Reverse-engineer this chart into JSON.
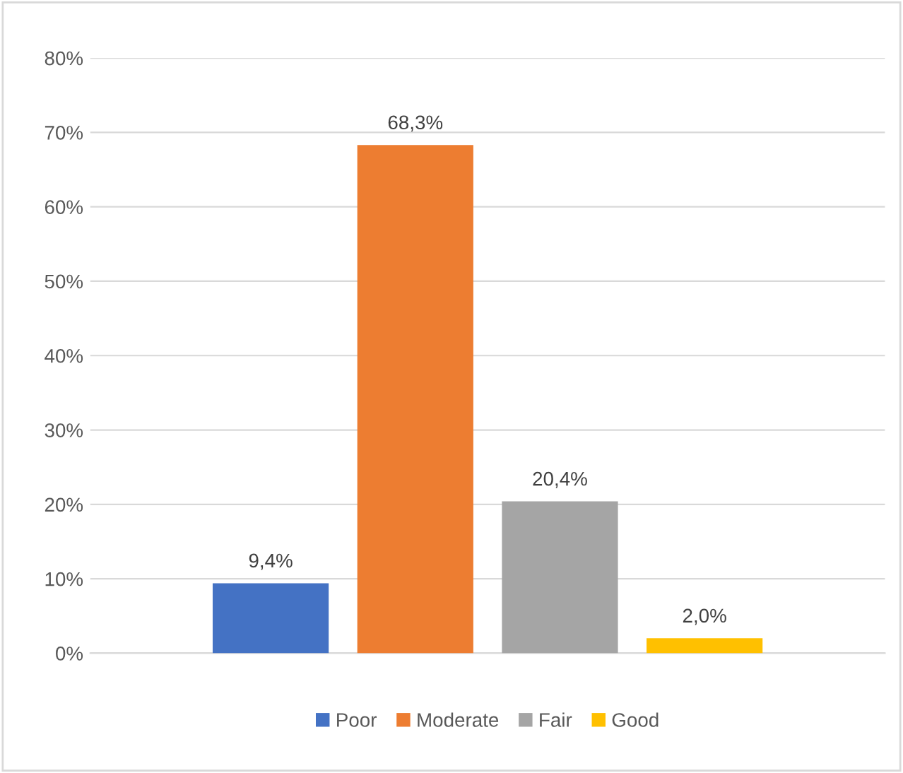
{
  "chart_data": {
    "type": "bar",
    "categories": [
      null
    ],
    "series": [
      {
        "name": "Poor",
        "color": "#4472c4",
        "values": [
          9.4
        ],
        "value_labels": [
          "9,4%"
        ]
      },
      {
        "name": "Moderate",
        "color": "#ed7d31",
        "values": [
          68.3
        ],
        "value_labels": [
          "68,3%"
        ]
      },
      {
        "name": "Fair",
        "color": "#a5a5a5",
        "values": [
          20.4
        ],
        "value_labels": [
          "20,4%"
        ]
      },
      {
        "name": "Good",
        "color": "#ffc000",
        "values": [
          2.0
        ],
        "value_labels": [
          "2,0%"
        ]
      }
    ],
    "ylim": [
      0,
      80
    ],
    "yticks": [
      {
        "value": 0,
        "label": "0%"
      },
      {
        "value": 10,
        "label": "10%"
      },
      {
        "value": 20,
        "label": "20%"
      },
      {
        "value": 30,
        "label": "30%"
      },
      {
        "value": 40,
        "label": "40%"
      },
      {
        "value": 50,
        "label": "50%"
      },
      {
        "value": 60,
        "label": "60%"
      },
      {
        "value": 70,
        "label": "70%"
      },
      {
        "value": 80,
        "label": "80%"
      }
    ],
    "grid": "y",
    "legend": "bottom"
  }
}
